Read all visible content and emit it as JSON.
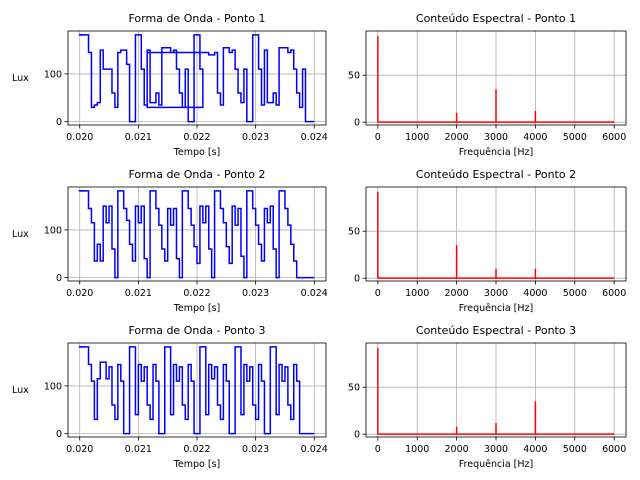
{
  "figure": {
    "colors": {
      "waveform": "#0000ff",
      "spectrum": "#ff0000",
      "grid": "#b0b0b0",
      "axes": "#000000"
    }
  },
  "chart_data": [
    {
      "type": "line",
      "title": "Forma de Onda - Ponto 1",
      "xlabel": "Tempo [s]",
      "ylabel": "Lux",
      "xlim": [
        0.0198,
        0.0242
      ],
      "ylim": [
        -7,
        190
      ],
      "xticks": [
        0.02,
        0.021,
        0.022,
        0.023,
        0.024
      ],
      "xtick_labels": [
        "0.020",
        "0.021",
        "0.022",
        "0.023",
        "0.024"
      ],
      "yticks": [
        0,
        100
      ],
      "ytick_labels": [
        "0",
        "100"
      ],
      "grid": true,
      "step": true,
      "series": [
        {
          "x": [
            0.02,
            0.02015,
            0.0202,
            0.02025,
            0.0203,
            0.02035,
            0.0204,
            0.02045,
            0.0205,
            0.02055,
            0.0206,
            0.02065,
            0.0207,
            0.02075,
            0.0208,
            0.02085,
            0.0209,
            0.02095,
            0.021,
            0.02105,
            0.0211,
            0.02115,
            0.0212,
            0.02125,
            0.0213,
            0.02135,
            0.0214,
            0.02145,
            0.0215,
            0.02155,
            0.0216,
            0.02165,
            0.0217,
            0.02175,
            0.0218,
            0.02185,
            0.0219,
            0.02195,
            0.022,
            0.02205,
            0.0221,
            0.02115,
            0.0222,
            0.02225,
            0.0223,
            0.02235,
            0.0224,
            0.02245,
            0.0225,
            0.02255,
            0.0226,
            0.02265,
            0.0227,
            0.02275,
            0.0228,
            0.02285,
            0.0229,
            0.02295,
            0.023,
            0.02305,
            0.0231,
            0.02315,
            0.0232,
            0.02325,
            0.0233,
            0.02335,
            0.0234,
            0.02345,
            0.0235,
            0.02355,
            0.0236,
            0.02365,
            0.0237,
            0.02375,
            0.0238,
            0.02385,
            0.0239,
            0.02395
          ],
          "y": [
            182,
            145,
            30,
            35,
            40,
            150,
            110,
            110,
            110,
            60,
            30,
            145,
            150,
            150,
            120,
            0,
            0,
            182,
            182,
            110,
            35,
            150,
            40,
            40,
            60,
            35,
            155,
            155,
            155,
            145,
            150,
            110,
            60,
            30,
            110,
            0,
            0,
            182,
            182,
            110,
            30,
            145,
            140,
            140,
            145,
            60,
            35,
            155,
            155,
            145,
            150,
            110,
            60,
            40,
            110,
            0,
            0,
            182,
            182,
            110,
            35,
            150,
            40,
            40,
            60,
            35,
            155,
            155,
            155,
            145,
            150,
            110,
            60,
            30,
            110,
            0,
            0,
            0
          ]
        }
      ]
    },
    {
      "type": "bar",
      "title": "Conteúdo Espectral - Ponto 1",
      "xlabel": "Frequência [Hz]",
      "ylabel": "",
      "xlim": [
        -300,
        6300
      ],
      "ylim": [
        -3,
        97
      ],
      "xticks": [
        0,
        1000,
        2000,
        3000,
        4000,
        5000,
        6000
      ],
      "xtick_labels": [
        "0",
        "1000",
        "2000",
        "3000",
        "4000",
        "5000",
        "6000"
      ],
      "yticks": [
        0,
        50
      ],
      "ytick_labels": [
        "0",
        "50"
      ],
      "grid": true,
      "baseline_x": [
        0,
        6000
      ],
      "x": [
        0,
        2000,
        3000,
        4000
      ],
      "values": [
        92,
        10,
        35,
        12
      ]
    },
    {
      "type": "line",
      "title": "Forma de Onda - Ponto 2",
      "xlabel": "Tempo [s]",
      "ylabel": "Lux",
      "xlim": [
        0.0198,
        0.0242
      ],
      "ylim": [
        -7,
        190
      ],
      "xticks": [
        0.02,
        0.021,
        0.022,
        0.023,
        0.024
      ],
      "xtick_labels": [
        "0.020",
        "0.021",
        "0.022",
        "0.023",
        "0.024"
      ],
      "yticks": [
        0,
        100
      ],
      "ytick_labels": [
        "0",
        "100"
      ],
      "grid": true,
      "step": true,
      "series": [
        {
          "x": [
            0.02,
            0.02015,
            0.0202,
            0.02025,
            0.0203,
            0.02035,
            0.0204,
            0.02045,
            0.0205,
            0.02055,
            0.0206,
            0.02065,
            0.0207,
            0.02075,
            0.0208,
            0.02085,
            0.0209,
            0.02095,
            0.021,
            0.02105,
            0.0211,
            0.02115,
            0.0212,
            0.02125,
            0.0213,
            0.02135,
            0.0214,
            0.02145,
            0.0215,
            0.02155,
            0.0216,
            0.02165,
            0.0217,
            0.02175,
            0.0218,
            0.02185,
            0.0219,
            0.02195,
            0.022,
            0.02205,
            0.0221,
            0.02215,
            0.0222,
            0.02225,
            0.0223,
            0.02235,
            0.0224,
            0.02245,
            0.0225,
            0.02255,
            0.0226,
            0.02265,
            0.0227,
            0.02275,
            0.0228,
            0.02285,
            0.0229,
            0.02295,
            0.023,
            0.02305,
            0.0231,
            0.02315,
            0.0232,
            0.02325,
            0.0233,
            0.02335,
            0.0234,
            0.02345,
            0.0235,
            0.02355,
            0.0236,
            0.02365,
            0.0237,
            0.02375,
            0.0238,
            0.02385,
            0.0239,
            0.02395
          ],
          "y": [
            182,
            145,
            115,
            35,
            70,
            35,
            150,
            115,
            150,
            60,
            0,
            182,
            182,
            145,
            120,
            70,
            35,
            150,
            115,
            150,
            40,
            0,
            182,
            182,
            145,
            110,
            60,
            35,
            145,
            110,
            145,
            40,
            0,
            182,
            182,
            145,
            110,
            65,
            30,
            150,
            115,
            150,
            60,
            0,
            182,
            182,
            145,
            115,
            65,
            30,
            150,
            110,
            145,
            45,
            0,
            182,
            182,
            145,
            110,
            70,
            35,
            145,
            115,
            150,
            60,
            0,
            182,
            182,
            145,
            110,
            70,
            35,
            0,
            0,
            0,
            0,
            0,
            0
          ]
        }
      ]
    },
    {
      "type": "bar",
      "title": "Conteúdo Espectral - Ponto 2",
      "xlabel": "Frequência [Hz]",
      "ylabel": "",
      "xlim": [
        -300,
        6300
      ],
      "ylim": [
        -3,
        97
      ],
      "xticks": [
        0,
        1000,
        2000,
        3000,
        4000,
        5000,
        6000
      ],
      "xtick_labels": [
        "0",
        "1000",
        "2000",
        "3000",
        "4000",
        "5000",
        "6000"
      ],
      "yticks": [
        0,
        50
      ],
      "ytick_labels": [
        "0",
        "50"
      ],
      "grid": true,
      "baseline_x": [
        0,
        6000
      ],
      "x": [
        0,
        2000,
        3000,
        4000
      ],
      "values": [
        92,
        35,
        10,
        10
      ]
    },
    {
      "type": "line",
      "title": "Forma de Onda - Ponto 3",
      "xlabel": "Tempo [s]",
      "ylabel": "Lux",
      "xlim": [
        0.0198,
        0.0242
      ],
      "ylim": [
        -7,
        190
      ],
      "xticks": [
        0.02,
        0.021,
        0.022,
        0.023,
        0.024
      ],
      "xtick_labels": [
        "0.020",
        "0.021",
        "0.022",
        "0.023",
        "0.024"
      ],
      "yticks": [
        0,
        100
      ],
      "ytick_labels": [
        "0",
        "100"
      ],
      "grid": true,
      "step": true,
      "series": [
        {
          "x": [
            0.02,
            0.02015,
            0.0202,
            0.02025,
            0.0203,
            0.02035,
            0.0204,
            0.02045,
            0.0205,
            0.02055,
            0.0206,
            0.02065,
            0.0207,
            0.02075,
            0.0208,
            0.02085,
            0.0209,
            0.02095,
            0.021,
            0.02105,
            0.0211,
            0.02115,
            0.0212,
            0.02125,
            0.0213,
            0.02135,
            0.0214,
            0.02145,
            0.0215,
            0.02155,
            0.0216,
            0.02165,
            0.0217,
            0.02175,
            0.0218,
            0.02185,
            0.0219,
            0.02195,
            0.022,
            0.02205,
            0.0221,
            0.02215,
            0.0222,
            0.02225,
            0.0223,
            0.02235,
            0.0224,
            0.02245,
            0.0225,
            0.02255,
            0.0226,
            0.02265,
            0.0227,
            0.02275,
            0.0228,
            0.02285,
            0.0229,
            0.02295,
            0.023,
            0.02305,
            0.0231,
            0.02315,
            0.0232,
            0.02325,
            0.0233,
            0.02335,
            0.0234,
            0.02345,
            0.0235,
            0.02355,
            0.0236,
            0.02365,
            0.0237,
            0.02375,
            0.0238,
            0.02385,
            0.0239,
            0.02395
          ],
          "y": [
            182,
            145,
            110,
            30,
            115,
            150,
            150,
            115,
            140,
            60,
            30,
            145,
            110,
            0,
            0,
            182,
            182,
            40,
            145,
            110,
            140,
            60,
            30,
            145,
            110,
            0,
            0,
            182,
            182,
            40,
            145,
            110,
            140,
            60,
            30,
            145,
            110,
            0,
            0,
            182,
            182,
            40,
            145,
            115,
            140,
            60,
            30,
            145,
            110,
            0,
            0,
            182,
            182,
            40,
            145,
            110,
            140,
            60,
            30,
            145,
            110,
            0,
            0,
            182,
            182,
            40,
            145,
            110,
            140,
            60,
            30,
            145,
            110,
            0,
            0,
            0,
            0,
            0
          ]
        }
      ]
    },
    {
      "type": "bar",
      "title": "Conteúdo Espectral - Ponto 3",
      "xlabel": "Frequência [Hz]",
      "ylabel": "",
      "xlim": [
        -300,
        6300
      ],
      "ylim": [
        -3,
        97
      ],
      "xticks": [
        0,
        1000,
        2000,
        3000,
        4000,
        5000,
        6000
      ],
      "xtick_labels": [
        "0",
        "1000",
        "2000",
        "3000",
        "4000",
        "5000",
        "6000"
      ],
      "yticks": [
        0,
        50
      ],
      "ytick_labels": [
        "0",
        "50"
      ],
      "grid": true,
      "baseline_x": [
        0,
        6000
      ],
      "x": [
        0,
        2000,
        3000,
        4000
      ],
      "values": [
        92,
        8,
        12,
        35
      ]
    }
  ]
}
